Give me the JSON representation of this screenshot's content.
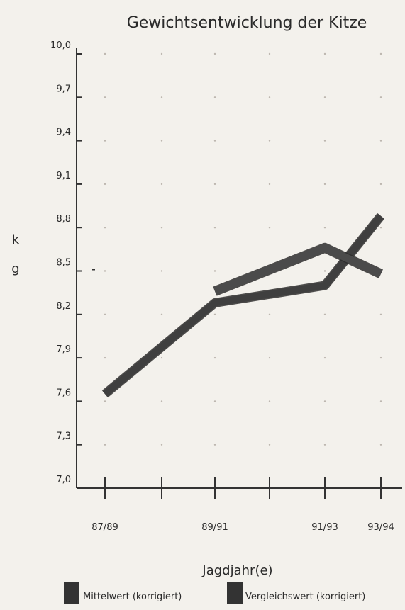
{
  "chart_data": {
    "type": "line",
    "title": "Gewichtsentwicklung der Kitze",
    "xlabel": "Jagdjahr(e)",
    "ylabel": "k\ng",
    "categories": [
      "87/89",
      "89/91",
      "91/93",
      "93/94"
    ],
    "ylim": [
      7.0,
      10.0
    ],
    "yticks": [
      "7,0",
      "7,3",
      "7,6",
      "7,9",
      "8,2",
      "8,5",
      "8,8",
      "9,1",
      "9,4",
      "9,7",
      "10,0"
    ],
    "grid": "dotted",
    "legend": "bottom",
    "series": [
      {
        "name": "Mittelwert (korrigiert)",
        "values": [
          7.65,
          8.28,
          8.4,
          8.88
        ],
        "color": "#3f3f3f"
      },
      {
        "name": "Vergleichswert (korrigiert)",
        "values": [
          null,
          8.36,
          8.66,
          8.48
        ],
        "color": "#4b4b4b"
      }
    ]
  }
}
